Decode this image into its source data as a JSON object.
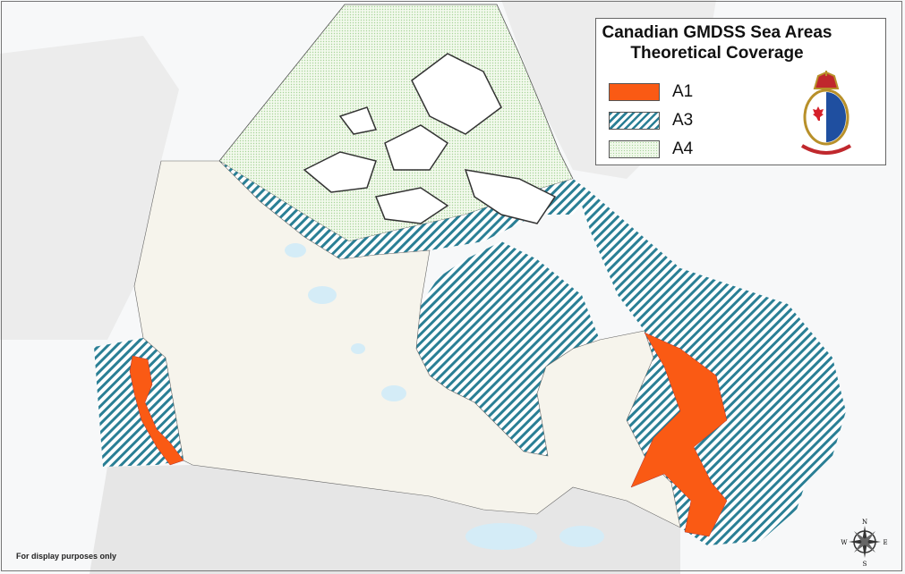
{
  "legend": {
    "title_line1": "Canadian GMDSS Sea Areas",
    "title_line2": "Theoretical Coverage",
    "items": [
      {
        "label": "A1",
        "color": "#fa5a14",
        "pattern": "solid"
      },
      {
        "label": "A3",
        "color": "#2a7f95",
        "pattern": "diagonal-hatch"
      },
      {
        "label": "A4",
        "color": "#a8d49a",
        "pattern": "dotted"
      }
    ]
  },
  "disclaimer": "For display purposes only",
  "compass": {
    "n": "N",
    "s": "S",
    "e": "E",
    "w": "W"
  },
  "colors": {
    "land": "#f6f4ec",
    "water": "#d4ecf7",
    "neighbour_land": "#e8e8e8",
    "islands": "#ffffff"
  },
  "logo": {
    "name": "canadian-coast-guard-crest"
  }
}
